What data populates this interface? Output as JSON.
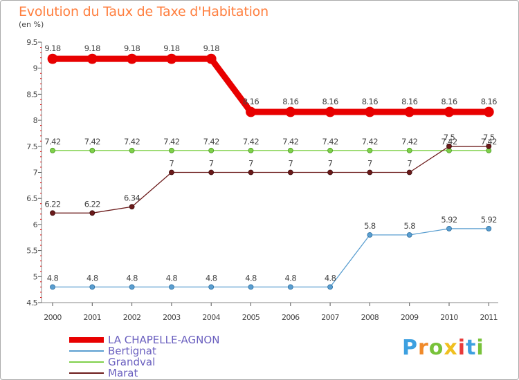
{
  "title": "Evolution du Taux de Taxe d'Habitation",
  "unit_label": "(en %)",
  "chart_data": {
    "type": "line",
    "title": "Evolution du Taux de Taxe d'Habitation",
    "ylabel": "(en %)",
    "xlabel": "",
    "categories": [
      "2000",
      "2001",
      "2002",
      "2003",
      "2004",
      "2005",
      "2006",
      "2007",
      "2008",
      "2009",
      "2010",
      "2011"
    ],
    "ylim": [
      4.5,
      9.5
    ],
    "yticks": [
      "4.5",
      "5",
      "5.5",
      "6",
      "6.5",
      "7",
      "7.5",
      "8",
      "8.5",
      "9",
      "9.5"
    ],
    "grid": false,
    "legend_position": "bottom-left",
    "series": [
      {
        "name": "LA CHAPELLE-AGNON",
        "color": "#e80000",
        "values": [
          9.18,
          9.18,
          9.18,
          9.18,
          9.18,
          8.16,
          8.16,
          8.16,
          8.16,
          8.16,
          8.16,
          8.16
        ],
        "labels": [
          "9.18",
          "9.18",
          "9.18",
          "9.18",
          "9.18",
          "8.16",
          "8.16",
          "8.16",
          "8.16",
          "8.16",
          "8.16",
          "8.16"
        ]
      },
      {
        "name": "Bertignat",
        "color": "#5a9ed0",
        "values": [
          4.8,
          4.8,
          4.8,
          4.8,
          4.8,
          4.8,
          4.8,
          4.8,
          5.8,
          5.8,
          5.92,
          5.92
        ],
        "labels": [
          "4.8",
          "4.8",
          "4.8",
          "4.8",
          "4.8",
          "4.8",
          "4.8",
          "4.8",
          "5.8",
          "5.8",
          "5.92",
          "5.92"
        ]
      },
      {
        "name": "Grandval",
        "color": "#7fd04a",
        "values": [
          7.42,
          7.42,
          7.42,
          7.42,
          7.42,
          7.42,
          7.42,
          7.42,
          7.42,
          7.42,
          7.42,
          7.42
        ],
        "labels": [
          "7.42",
          "7.42",
          "7.42",
          "7.42",
          "7.42",
          "7.42",
          "7.42",
          "7.42",
          "7.42",
          "7.42",
          "7.42",
          "7.42"
        ]
      },
      {
        "name": "Marat",
        "color": "#6b1a1a",
        "values": [
          6.22,
          6.22,
          6.34,
          7,
          7,
          7,
          7,
          7,
          7,
          7,
          7.5,
          7.5
        ],
        "labels": [
          "6.22",
          "6.22",
          "6.34",
          "7",
          "7",
          "7",
          "7",
          "7",
          "7",
          "7",
          "7.5",
          "7.5"
        ]
      }
    ]
  },
  "logo": {
    "text": "Proxiti",
    "letters": [
      "P",
      "r",
      "o",
      "x",
      "i",
      "t",
      "i"
    ],
    "colors": [
      "#3da0e0",
      "#f08a2a",
      "#78c23a",
      "#f0c020",
      "#e83a3a",
      "#3da0e0",
      "#78c23a"
    ]
  }
}
